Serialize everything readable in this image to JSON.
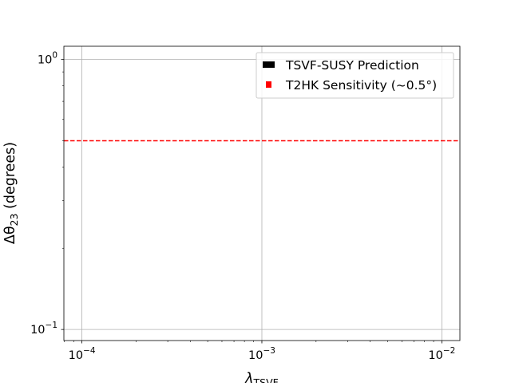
{
  "chart_data": {
    "type": "line",
    "title": "",
    "xlabel": {
      "symbol": "λ",
      "subscript": "TSVF"
    },
    "ylabel": {
      "prefix": "Δθ",
      "subscript": "23",
      "suffix": " (degrees)"
    },
    "xscale": "log",
    "yscale": "log",
    "xlim": [
      7.94e-05,
      0.0126
    ],
    "ylim": [
      0.091,
      1.12
    ],
    "grid": true,
    "legend_position": "upper right",
    "x_ticks": [
      {
        "value": 0.0001,
        "base": "10",
        "exp": "−4"
      },
      {
        "value": 0.001,
        "base": "10",
        "exp": "−3"
      },
      {
        "value": 0.01,
        "base": "10",
        "exp": "−2"
      }
    ],
    "y_ticks": [
      {
        "value": 0.1,
        "base": "10",
        "exp": "−1"
      },
      {
        "value": 1,
        "base": "10",
        "exp": "0"
      }
    ],
    "series": [
      {
        "name": "TSVF-SUSY Prediction",
        "color": "#000000",
        "style": "solid",
        "x": [],
        "y": []
      },
      {
        "name": "T2HK Sensitivity (~0.5°)",
        "color": "#ff0000",
        "style": "dashed",
        "y": 0.5
      }
    ]
  }
}
